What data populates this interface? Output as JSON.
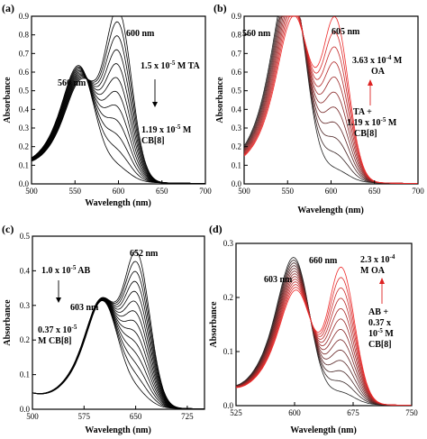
{
  "chart_data": [
    {
      "id": "a",
      "type": "line",
      "panel_label": "(a)",
      "xlabel": "Wavelength (nm)",
      "ylabel": "Absorbance",
      "xlim": [
        500,
        700
      ],
      "ylim": [
        0.0,
        0.9
      ],
      "xticks": [
        "500",
        "550",
        "600",
        "650",
        "700"
      ],
      "yticks": [
        "0.0",
        "0.1",
        "0.2",
        "0.3",
        "0.4",
        "0.5",
        "0.6",
        "0.7",
        "0.8",
        "0.9"
      ],
      "curves": 12,
      "curve_color_start": "#000000",
      "curve_color_end": "#000000",
      "start": {
        "peak1_x": 560,
        "peak1_y": 0.43,
        "peak2_x": 600,
        "peak2_y": 0.9
      },
      "end": {
        "peak1_x": 557,
        "peak1_y": 0.5,
        "peak2_x": 598,
        "peak2_y": 0.07
      },
      "annotations": [
        {
          "text": "600 nm"
        },
        {
          "text": "560 nm"
        },
        {
          "text": "1.5 x 10"
        },
        {
          "text": "-5"
        },
        {
          "text": " M TA"
        },
        {
          "text": "1.19 x 10"
        },
        {
          "text": "-5"
        },
        {
          "text": " M"
        },
        {
          "text": "CB[8]"
        }
      ]
    },
    {
      "id": "b",
      "type": "line",
      "panel_label": "(b)",
      "xlabel": "Wavelength (nm)",
      "ylabel": "Absorbance",
      "xlim": [
        500,
        700
      ],
      "ylim": [
        0.0,
        0.9
      ],
      "xticks": [
        "500",
        "550",
        "600",
        "650",
        "700"
      ],
      "yticks": [
        "0.0",
        "0.1",
        "0.2",
        "0.3",
        "0.4",
        "0.5",
        "0.6",
        "0.7",
        "0.8",
        "0.9"
      ],
      "curves": 11,
      "curve_color_start": "#222222",
      "curve_color_end": "#ee2a2a",
      "start": {
        "peak1_x": 555,
        "peak1_y": 0.9,
        "peak2_x": 605,
        "peak2_y": 0.06
      },
      "end": {
        "peak1_x": 560,
        "peak1_y": 0.72,
        "peak2_x": 605,
        "peak2_y": 0.86
      },
      "annotations": [
        {
          "text": "560 nm"
        },
        {
          "text": "605 nm"
        },
        {
          "text": "3.63 x 10"
        },
        {
          "text": "-4"
        },
        {
          "text": " M"
        },
        {
          "text": "OA"
        },
        {
          "text": "TA +"
        },
        {
          "text": "1.19 x 10"
        },
        {
          "text": "-5"
        },
        {
          "text": " M"
        },
        {
          "text": "CB[8]"
        }
      ]
    },
    {
      "id": "c",
      "type": "line",
      "panel_label": "(c)",
      "xlabel": "Wavelength (nm)",
      "ylabel": "Absorbance",
      "xlim": [
        500,
        750
      ],
      "ylim": [
        0.0,
        0.5
      ],
      "xticks": [
        "500",
        "575",
        "650",
        "725"
      ],
      "yticks": [
        "0.0",
        "0.1",
        "0.2",
        "0.3",
        "0.4",
        "0.5"
      ],
      "curves": 14,
      "curve_color_start": "#000000",
      "curve_color_end": "#000000",
      "start": {
        "peak1_x": 603,
        "peak1_y": 0.25,
        "peak2_x": 652,
        "peak2_y": 0.43
      },
      "end": {
        "peak1_x": 605,
        "peak1_y": 0.25,
        "peak2_x": 650,
        "peak2_y": 0.04
      },
      "annotations": [
        {
          "text": "652 nm"
        },
        {
          "text": "1.0 x 10"
        },
        {
          "text": "-5"
        },
        {
          "text": " AB"
        },
        {
          "text": "603 nm"
        },
        {
          "text": "0.37 x 10"
        },
        {
          "text": "-5"
        },
        {
          "text": "M CB[8]"
        }
      ]
    },
    {
      "id": "d",
      "type": "line",
      "panel_label": "(d)",
      "xlabel": "Wavelength (nm)",
      "ylabel": "Absorbance",
      "xlim": [
        525,
        750
      ],
      "ylim": [
        0.0,
        0.3
      ],
      "xticks": [
        "525",
        "600",
        "675",
        "750"
      ],
      "yticks": [
        "0.0",
        "0.1",
        "0.2",
        "0.3"
      ],
      "curves": 13,
      "curve_color_start": "#222222",
      "curve_color_end": "#ee2a2a",
      "start": {
        "peak1_x": 602,
        "peak1_y": 0.22,
        "peak2_x": 660,
        "peak2_y": 0.02
      },
      "end": {
        "peak1_x": 605,
        "peak1_y": 0.17,
        "peak2_x": 660,
        "peak2_y": 0.25
      },
      "annotations": [
        {
          "text": "603 nm"
        },
        {
          "text": "660 nm"
        },
        {
          "text": "2.3 x 10"
        },
        {
          "text": "-4"
        },
        {
          "text": "M OA"
        },
        {
          "text": "AB +"
        },
        {
          "text": "0.37 x"
        },
        {
          "text": "10"
        },
        {
          "text": "-5"
        },
        {
          "text": " M"
        },
        {
          "text": "CB[8]"
        }
      ]
    }
  ]
}
